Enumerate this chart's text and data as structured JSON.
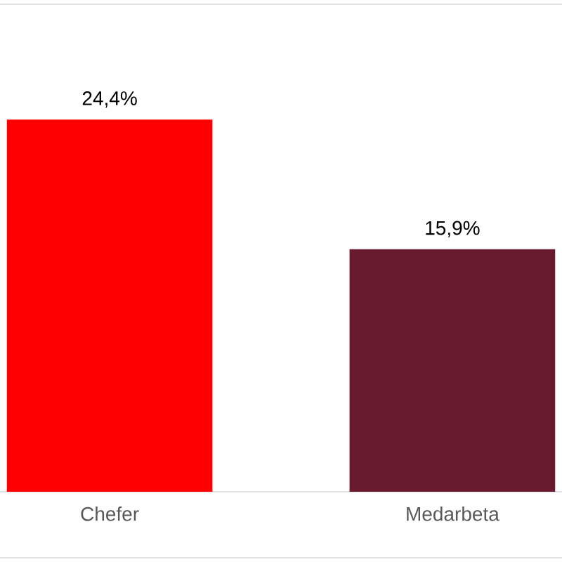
{
  "chart_data": {
    "type": "bar",
    "categories": [
      "Chefer",
      "Medarbeta"
    ],
    "values": [
      24.4,
      15.9
    ],
    "colors": [
      "#ff0000",
      "#6a1a2e"
    ],
    "value_labels": [
      "24,4%",
      "15,9%"
    ]
  }
}
